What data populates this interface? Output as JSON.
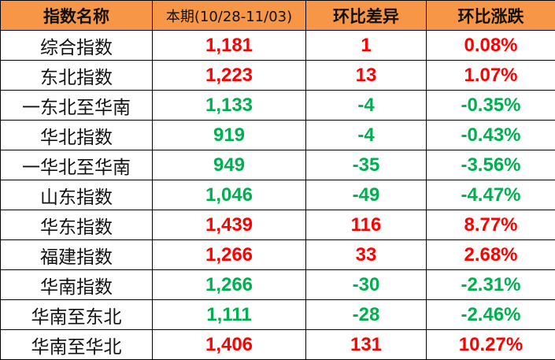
{
  "colors": {
    "header_bg": "#F79646",
    "up": "#FF0000",
    "down": "#00B050"
  },
  "headers": [
    "指数名称",
    "本期(10/28-11/03)",
    "环比差异",
    "环比涨跌"
  ],
  "rows": [
    {
      "name": "综合指数",
      "value": "1,181",
      "diff": "1",
      "pct": "0.08%",
      "trend": "up"
    },
    {
      "name": "东北指数",
      "value": "1,223",
      "diff": "13",
      "pct": "1.07%",
      "trend": "up"
    },
    {
      "name": "一东北至华南",
      "value": "1,133",
      "diff": "-4",
      "pct": "-0.35%",
      "trend": "down"
    },
    {
      "name": "华北指数",
      "value": "919",
      "diff": "-4",
      "pct": "-0.43%",
      "trend": "down"
    },
    {
      "name": "一华北至华南",
      "value": "949",
      "diff": "-35",
      "pct": "-3.56%",
      "trend": "down"
    },
    {
      "name": "山东指数",
      "value": "1,046",
      "diff": "-49",
      "pct": "-4.47%",
      "trend": "down"
    },
    {
      "name": "华东指数",
      "value": "1,439",
      "diff": "116",
      "pct": "8.77%",
      "trend": "up"
    },
    {
      "name": "福建指数",
      "value": "1,266",
      "diff": "33",
      "pct": "2.68%",
      "trend": "up"
    },
    {
      "name": "华南指数",
      "value": "1,266",
      "diff": "-30",
      "pct": "-2.31%",
      "trend": "down"
    },
    {
      "name": "华南至东北",
      "value": "1,111",
      "diff": "-28",
      "pct": "-2.46%",
      "trend": "down"
    },
    {
      "name": "华南至华北",
      "value": "1,406",
      "diff": "131",
      "pct": "10.27%",
      "trend": "up"
    }
  ]
}
